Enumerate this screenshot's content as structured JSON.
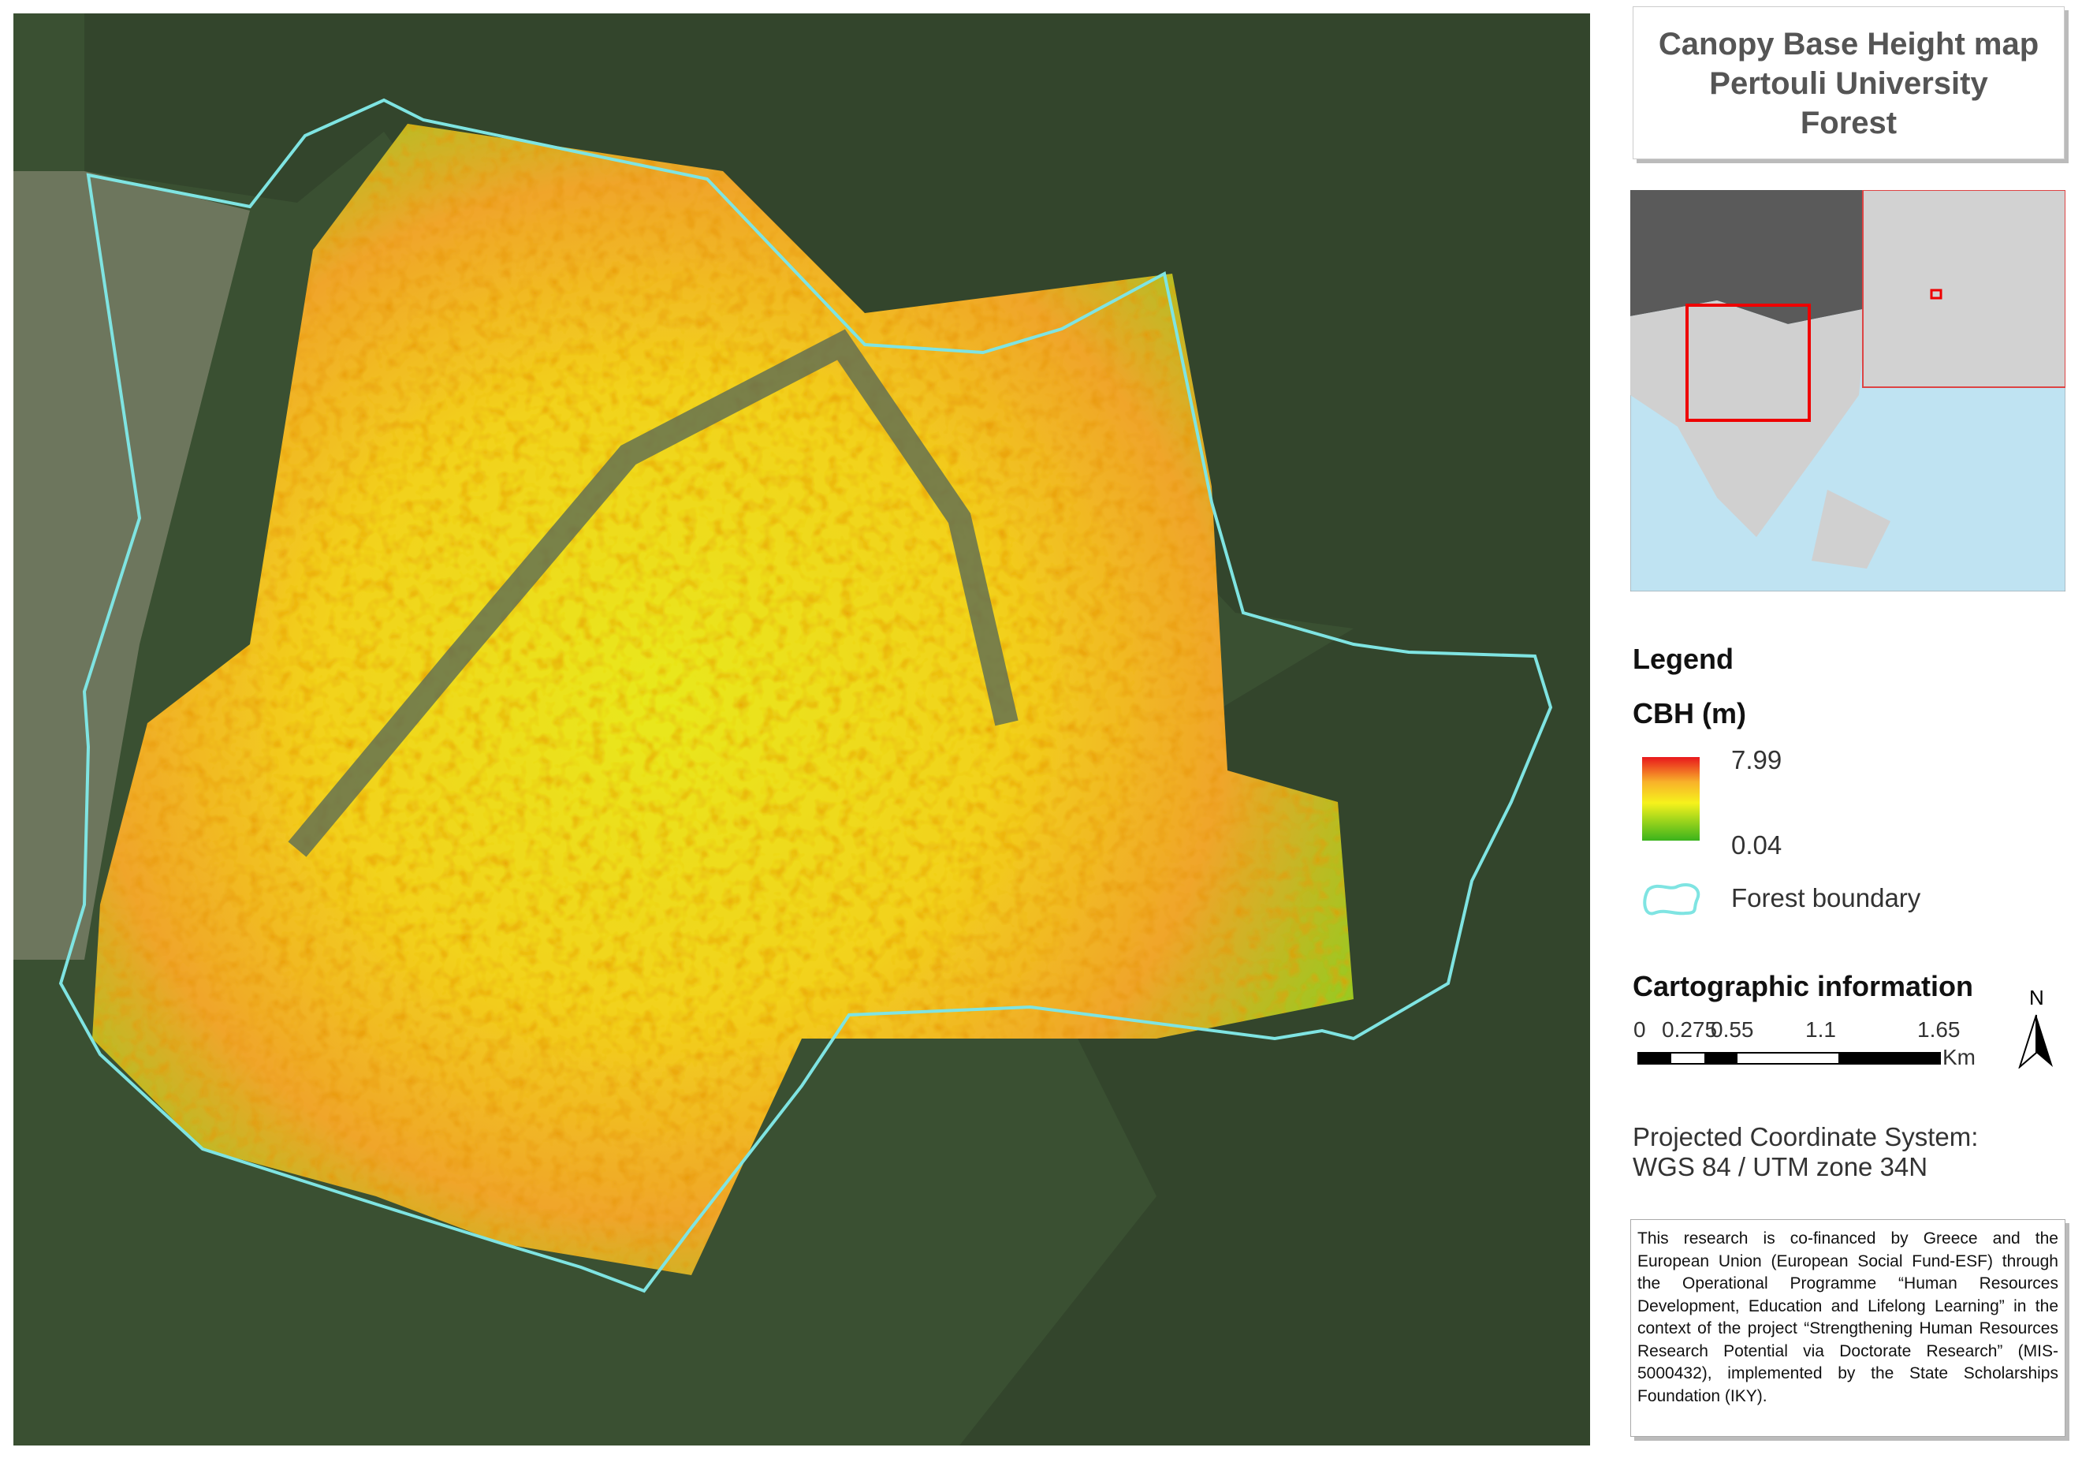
{
  "title": {
    "lines": [
      "Canopy Base Height map",
      "Pertouli University",
      "Forest"
    ]
  },
  "legend": {
    "heading": "Legend",
    "variable": "CBH (m)",
    "max_label": "7.99",
    "min_label": "0.04",
    "boundary_label": "Forest boundary"
  },
  "cartographic": {
    "heading": "Cartographic information",
    "scale_labels": [
      "0",
      "0.275",
      "0.55",
      "1.1",
      "1.65"
    ],
    "scale_unit": "Km",
    "north": "N",
    "crs_lines": [
      "Projected Coordinate System:",
      "WGS 84 / UTM zone 34N"
    ]
  },
  "funding": {
    "text": "This research is co-financed by Greece and the European Union (European Social Fund-ESF) through the Operational Programme “Human Resources Development, Education and Lifelong Learning” in the context of the project “Strengthening Human Resources Research Potential via Doctorate Research” (MIS-5000432), implemented by the State Scholarships Foundation (IKY)."
  }
}
